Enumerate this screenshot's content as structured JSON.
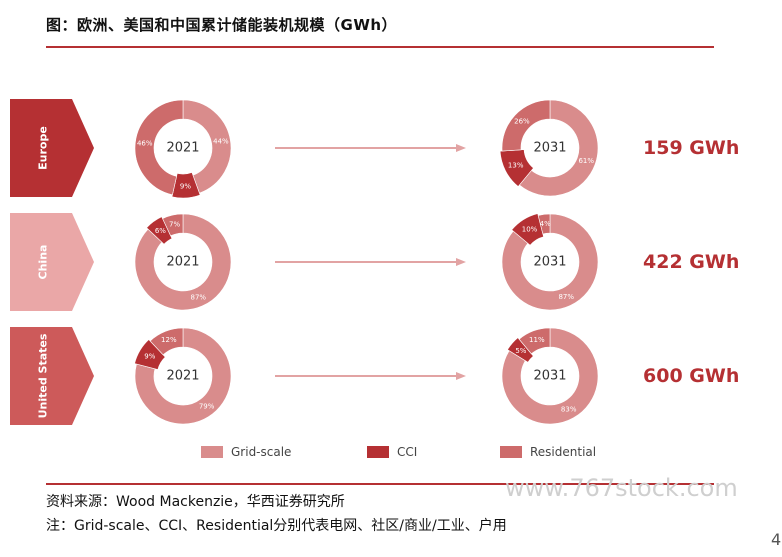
{
  "title": "图：欧洲、美国和中国累计储能装机规模（GWh）",
  "source": "资料来源：Wood Mackenzie，华西证券研究所",
  "note": "注：Grid-scale、CCI、Residential分别代表电网、社区/商业/工业、户用",
  "watermark": "www.767stock.com",
  "page_number": "4",
  "colors": {
    "grid": "#d98c8c",
    "cci": "#b53033",
    "residential": "#cd6b6b",
    "china_band": "#eaa7a7",
    "europe_band": "#b53033",
    "us_band": "#cd5a5a",
    "accent": "#b53033"
  },
  "chart_data": {
    "type": "pie",
    "categories": [
      "Grid-scale",
      "CCI",
      "Residential"
    ],
    "legend": {
      "placement": "bottom",
      "items": [
        "Grid-scale",
        "CCI",
        "Residential"
      ]
    },
    "regions": [
      {
        "name": "Europe",
        "total": "159 GWh",
        "years": [
          {
            "year": "2021",
            "values": [
              44,
              9,
              46
            ],
            "labels": [
              "44%",
              "9%",
              "46%"
            ]
          },
          {
            "year": "2031",
            "values": [
              61,
              13,
              26
            ],
            "labels": [
              "61%",
              "13%",
              "26%"
            ]
          }
        ]
      },
      {
        "name": "China",
        "total": "422 GWh",
        "years": [
          {
            "year": "2021",
            "values": [
              87,
              6,
              7
            ],
            "labels": [
              "87%",
              "6%",
              "7%"
            ]
          },
          {
            "year": "2031",
            "values": [
              87,
              10,
              4
            ],
            "labels": [
              "87%",
              "10%",
              "4%"
            ]
          }
        ]
      },
      {
        "name": "United States",
        "total": "600 GWh",
        "years": [
          {
            "year": "2021",
            "values": [
              79,
              9,
              12
            ],
            "labels": [
              "79%",
              "9%",
              "12%"
            ]
          },
          {
            "year": "2031",
            "values": [
              83,
              5,
              11
            ],
            "labels": [
              "83%",
              "5%",
              "11%"
            ]
          }
        ]
      }
    ]
  }
}
